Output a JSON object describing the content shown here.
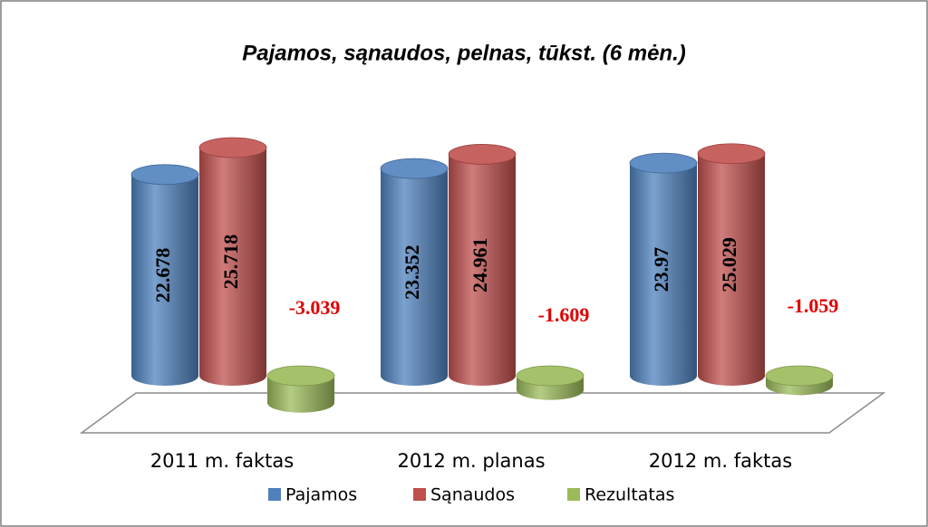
{
  "chart_data": {
    "type": "bar3d",
    "title": "Pajamos, sąnaudos, pelnas, tūkst. (6 mėn.)",
    "categories": [
      "2011 m. faktas",
      "2012 m. planas",
      "2012 m. faktas"
    ],
    "series": [
      {
        "name": "Pajamos",
        "color": "#4f81bd",
        "values": [
          22.678,
          23.352,
          23.97
        ]
      },
      {
        "name": "Sąnaudos",
        "color": "#c0504d",
        "values": [
          25.718,
          24.961,
          25.029
        ]
      },
      {
        "name": "Rezultatas",
        "color": "#9bbb59",
        "values": [
          -3.039,
          -1.609,
          -1.059
        ]
      }
    ],
    "legend": "bottom"
  }
}
